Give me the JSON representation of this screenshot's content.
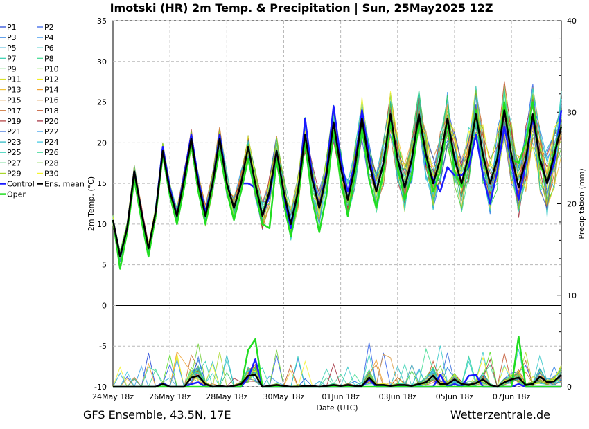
{
  "title": "Imotski  (HR)  2m Temp. & Precipitation | Sun, 25May2025 12Z",
  "footer_left": "GFS Ensemble, 43.5N, 17E",
  "footer_right": "Wetterzentrale.de",
  "chart_data": {
    "type": "line",
    "title": "Imotski  (HR)  2m Temp. & Precipitation | Sun, 25May2025 12Z",
    "xlabel": "Date (UTC)",
    "ylabel": "2m Temp. (°C)",
    "ylabel_right": "Precipitation (mm)",
    "xlim": [
      0,
      15.75
    ],
    "ylim": [
      -10,
      35
    ],
    "ylim_right": [
      0,
      40
    ],
    "yticks": [
      35,
      30,
      25,
      20,
      15,
      10,
      5,
      0,
      -5,
      -10
    ],
    "yticks_right": [
      40,
      30,
      20,
      10,
      0
    ],
    "xticks": [
      "24May 18z",
      "26May 18z",
      "28May 18z",
      "30May 18z",
      "01Jun 18z",
      "03Jun 18z",
      "05Jun 18z",
      "07Jun 18z"
    ],
    "xtick_positions": [
      0,
      2,
      4,
      6,
      8,
      10,
      12,
      14
    ],
    "grid": true,
    "zero_line": 0,
    "legend_position": "left",
    "colors": {
      "control": "#1a1aff",
      "ens_mean": "#000000",
      "oper": "#22dd22"
    },
    "members": [
      {
        "name": "P1",
        "color": "#1c3fd6"
      },
      {
        "name": "P2",
        "color": "#2a5ae6"
      },
      {
        "name": "P3",
        "color": "#1f77e0"
      },
      {
        "name": "P4",
        "color": "#3d98ee"
      },
      {
        "name": "P5",
        "color": "#22a9d6"
      },
      {
        "name": "P6",
        "color": "#33c7c7"
      },
      {
        "name": "P7",
        "color": "#2fcfae"
      },
      {
        "name": "P8",
        "color": "#3ddb8f"
      },
      {
        "name": "P9",
        "color": "#2ecc40"
      },
      {
        "name": "P10",
        "color": "#55dd22"
      },
      {
        "name": "P11",
        "color": "#d8e22a"
      },
      {
        "name": "P12",
        "color": "#f3ef20"
      },
      {
        "name": "P13",
        "color": "#f2c43a"
      },
      {
        "name": "P14",
        "color": "#f0a030"
      },
      {
        "name": "P15",
        "color": "#dd9a40"
      },
      {
        "name": "P16",
        "color": "#d2822a"
      },
      {
        "name": "P17",
        "color": "#c96a2a"
      },
      {
        "name": "P18",
        "color": "#c0502a"
      },
      {
        "name": "P19",
        "color": "#b23838"
      },
      {
        "name": "P20",
        "color": "#a02a3a"
      },
      {
        "name": "P21",
        "color": "#2a63d8"
      },
      {
        "name": "P22",
        "color": "#2f9ae8"
      },
      {
        "name": "P23",
        "color": "#20b5c0"
      },
      {
        "name": "P24",
        "color": "#3cc8e0"
      },
      {
        "name": "P25",
        "color": "#33d1b8"
      },
      {
        "name": "P26",
        "color": "#40d898"
      },
      {
        "name": "P27",
        "color": "#2bc860"
      },
      {
        "name": "P28",
        "color": "#6ccc30"
      },
      {
        "name": "P29",
        "color": "#a8d62a"
      },
      {
        "name": "P30",
        "color": "#f5f530"
      }
    ],
    "x": [
      0.0,
      0.25,
      0.5,
      0.75,
      1.0,
      1.25,
      1.5,
      1.75,
      2.0,
      2.25,
      2.5,
      2.75,
      3.0,
      3.25,
      3.5,
      3.75,
      4.0,
      4.25,
      4.5,
      4.75,
      5.0,
      5.25,
      5.5,
      5.75,
      6.0,
      6.25,
      6.5,
      6.75,
      7.0,
      7.25,
      7.5,
      7.75,
      8.0,
      8.25,
      8.5,
      8.75,
      9.0,
      9.25,
      9.5,
      9.75,
      10.0,
      10.25,
      10.5,
      10.75,
      11.0,
      11.25,
      11.5,
      11.75,
      12.0,
      12.25,
      12.5,
      12.75,
      13.0,
      13.25,
      13.5,
      13.75,
      14.0,
      14.25,
      14.5,
      14.75,
      15.0,
      15.25,
      15.5,
      15.75
    ],
    "series": [
      {
        "name": "Ens. mean",
        "values": [
          10.5,
          6.0,
          9.5,
          16.5,
          11.5,
          7.0,
          11.5,
          19.0,
          14.0,
          11.0,
          15.5,
          20.5,
          15.0,
          11.0,
          15.0,
          20.5,
          15.0,
          12.0,
          15.0,
          19.5,
          15.0,
          11.0,
          14.0,
          19.0,
          14.0,
          10.0,
          14.0,
          21.0,
          15.5,
          12.0,
          16.0,
          22.5,
          17.0,
          13.0,
          17.0,
          23.0,
          17.5,
          14.0,
          17.5,
          23.5,
          18.0,
          14.5,
          18.0,
          23.5,
          18.5,
          15.0,
          18.0,
          23.0,
          18.0,
          15.0,
          18.5,
          23.5,
          18.5,
          15.0,
          18.0,
          24.0,
          18.5,
          14.5,
          18.0,
          23.5,
          18.0,
          15.0,
          18.5,
          22.0
        ]
      },
      {
        "name": "Control",
        "values": [
          10.5,
          6.0,
          9.5,
          16.5,
          11.5,
          7.0,
          11.5,
          19.5,
          14.5,
          11.0,
          16.0,
          21.0,
          15.5,
          11.5,
          15.0,
          21.0,
          15.0,
          12.0,
          15.0,
          15.0,
          14.5,
          11.0,
          13.5,
          19.0,
          13.5,
          9.5,
          13.5,
          23.0,
          16.0,
          12.0,
          16.5,
          24.5,
          18.0,
          14.0,
          17.5,
          24.0,
          18.5,
          14.0,
          17.5,
          23.0,
          18.0,
          14.5,
          18.0,
          23.0,
          17.5,
          15.5,
          14.0,
          17.0,
          16.0,
          16.0,
          17.0,
          21.0,
          16.0,
          12.5,
          16.5,
          22.0,
          17.5,
          13.0,
          17.5,
          23.0,
          18.0,
          15.0,
          17.5,
          24.0
        ]
      },
      {
        "name": "Oper",
        "values": [
          10.5,
          4.5,
          9.0,
          15.5,
          10.5,
          6.0,
          11.0,
          18.5,
          13.5,
          10.0,
          14.5,
          20.0,
          14.0,
          10.0,
          14.5,
          19.0,
          14.0,
          10.5,
          14.0,
          18.0,
          14.0,
          10.0,
          9.5,
          18.0,
          12.5,
          8.5,
          13.0,
          20.0,
          13.0,
          9.0,
          13.5,
          21.5,
          15.5,
          11.0,
          16.0,
          22.0,
          15.5,
          12.0,
          16.5,
          22.5,
          17.0,
          13.0,
          16.0,
          22.5,
          18.0,
          14.0,
          16.5,
          22.5,
          16.5,
          14.5,
          18.0,
          24.0,
          18.0,
          15.0,
          18.0,
          25.0,
          18.0,
          17.5,
          20.0,
          25.0,
          17.5,
          15.0,
          19.0,
          22.0
        ]
      }
    ],
    "precip_series": [
      {
        "name": "Ens. mean",
        "values": [
          0.0,
          0.0,
          0.0,
          0.0,
          0.0,
          0.0,
          0.0,
          0.3,
          0.0,
          0.0,
          0.0,
          1.0,
          1.2,
          0.3,
          0.0,
          0.1,
          0.0,
          0.1,
          0.3,
          1.2,
          1.3,
          0.0,
          0.1,
          0.2,
          0.1,
          0.0,
          0.0,
          0.1,
          0.1,
          0.0,
          0.1,
          0.2,
          0.1,
          0.2,
          0.1,
          0.1,
          1.0,
          0.2,
          0.2,
          0.1,
          0.2,
          0.2,
          0.1,
          0.3,
          0.5,
          1.2,
          0.3,
          0.3,
          0.8,
          0.3,
          0.2,
          0.4,
          0.8,
          0.2,
          0.0,
          0.5,
          0.8,
          1.0,
          0.2,
          0.3,
          1.1,
          0.5,
          0.6,
          1.3
        ]
      },
      {
        "name": "Control",
        "values": [
          0.0,
          0.0,
          0.0,
          0.0,
          0.0,
          0.0,
          0.0,
          0.4,
          0.0,
          0.0,
          0.0,
          0.3,
          0.5,
          0.0,
          0.0,
          0.0,
          0.0,
          0.0,
          0.0,
          1.0,
          3.0,
          0.0,
          0.0,
          0.0,
          0.0,
          0.0,
          0.0,
          0.0,
          0.0,
          0.0,
          0.0,
          0.0,
          0.0,
          0.0,
          0.0,
          0.0,
          0.8,
          0.0,
          0.0,
          0.0,
          0.0,
          0.0,
          0.0,
          0.0,
          0.0,
          0.0,
          1.3,
          0.0,
          0.3,
          0.0,
          1.2,
          1.3,
          0.0,
          0.0,
          0.0,
          0.0,
          0.0,
          0.3,
          0.0,
          0.0,
          0.0,
          0.0,
          0.0,
          0.0
        ]
      },
      {
        "name": "Oper",
        "values": [
          0.0,
          0.0,
          0.0,
          0.0,
          0.0,
          0.0,
          0.0,
          0.0,
          0.0,
          0.0,
          0.0,
          0.0,
          0.0,
          0.0,
          0.0,
          0.0,
          0.0,
          0.0,
          0.0,
          4.0,
          5.2,
          0.0,
          0.0,
          0.0,
          0.0,
          0.0,
          0.0,
          0.0,
          0.0,
          0.0,
          0.0,
          0.0,
          0.0,
          0.0,
          0.0,
          0.0,
          0.0,
          0.0,
          0.0,
          0.0,
          0.0,
          0.0,
          0.0,
          0.0,
          0.0,
          0.0,
          0.0,
          0.0,
          0.0,
          0.0,
          0.0,
          0.0,
          0.0,
          0.0,
          0.0,
          0.0,
          0.0,
          5.5,
          0.0,
          0.0,
          0.0,
          0.0,
          0.0,
          0.0
        ]
      }
    ]
  }
}
